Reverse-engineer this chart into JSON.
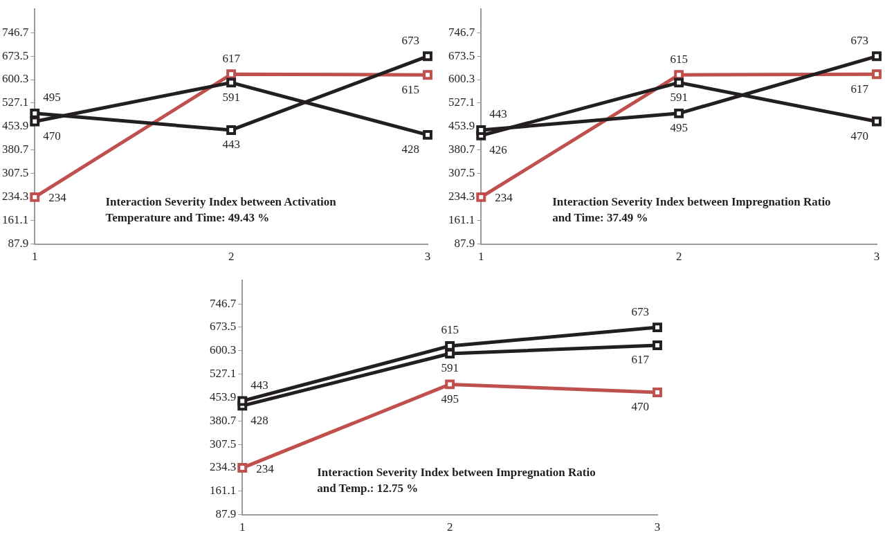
{
  "chart_data": [
    {
      "type": "line",
      "categories": [
        "1",
        "2",
        "3"
      ],
      "ylim": [
        87.9,
        819.9
      ],
      "yticks": [
        87.9,
        161.1,
        234.3,
        307.5,
        380.7,
        453.9,
        527.1,
        600.3,
        673.5,
        746.7
      ],
      "grid": false,
      "legend": false,
      "marker": "square",
      "data_labels": true,
      "annotations": [
        "Interaction Severity Index between Activation Temperature and Time: 49.43 %"
      ],
      "series": [
        {
          "color": "#231f20",
          "values": [
            495,
            443,
            673
          ]
        },
        {
          "color": "#231f20",
          "values": [
            470,
            591,
            428
          ]
        },
        {
          "color": "#c0504d",
          "values": [
            234,
            617,
            615
          ]
        }
      ]
    },
    {
      "type": "line",
      "categories": [
        "1",
        "2",
        "3"
      ],
      "ylim": [
        87.9,
        819.9
      ],
      "yticks": [
        87.9,
        161.1,
        234.3,
        307.5,
        380.7,
        453.9,
        527.1,
        600.3,
        673.5,
        746.7
      ],
      "grid": false,
      "legend": false,
      "marker": "square",
      "data_labels": true,
      "annotations": [
        "Interaction Severity Index between Impregnation Ratio and Time: 37.49 %"
      ],
      "series": [
        {
          "color": "#231f20",
          "values": [
            443,
            495,
            673
          ]
        },
        {
          "color": "#231f20",
          "values": [
            426,
            591,
            470
          ]
        },
        {
          "color": "#c0504d",
          "values": [
            234,
            615,
            617
          ]
        }
      ]
    },
    {
      "type": "line",
      "categories": [
        "1",
        "2",
        "3"
      ],
      "ylim": [
        87.9,
        819.9
      ],
      "yticks": [
        87.9,
        161.1,
        234.3,
        307.5,
        380.7,
        453.9,
        527.1,
        600.3,
        673.5,
        746.7
      ],
      "grid": false,
      "legend": false,
      "marker": "square",
      "data_labels": true,
      "annotations": [
        "Interaction Severity Index between Impregnation Ratio and Temp.: 12.75 %"
      ],
      "series": [
        {
          "color": "#231f20",
          "values": [
            443,
            615,
            673
          ]
        },
        {
          "color": "#231f20",
          "values": [
            428,
            591,
            617
          ]
        },
        {
          "color": "#c0504d",
          "values": [
            234,
            495,
            470
          ]
        }
      ]
    }
  ]
}
